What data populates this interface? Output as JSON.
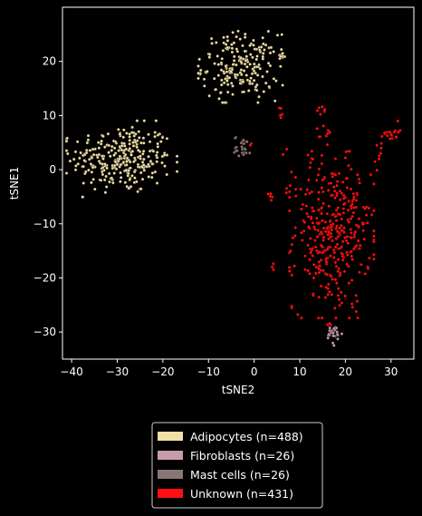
{
  "chart_data": {
    "type": "scatter",
    "xlabel": "tSNE2",
    "ylabel": "tSNE1",
    "xlim": [
      -42,
      35
    ],
    "ylim": [
      -35,
      30
    ],
    "xticks": [
      -40,
      -30,
      -20,
      -10,
      0,
      10,
      20,
      30
    ],
    "yticks": [
      -30,
      -20,
      -10,
      0,
      10,
      20
    ],
    "grid": false,
    "legend_position": "bottom-center",
    "background": "#000000",
    "series": [
      {
        "name": "Adipocytes (n=488)",
        "color": "#f1e0a6",
        "clusters": [
          {
            "cx": -29,
            "cy": 2,
            "sx": 5.5,
            "sy": 3.2,
            "n": 280
          },
          {
            "cx": -3,
            "cy": 19,
            "sx": 4.2,
            "sy": 3.0,
            "n": 200
          },
          {
            "cx": 6,
            "cy": 21,
            "sx": 0.4,
            "sy": 0.6,
            "n": 8
          }
        ]
      },
      {
        "name": "Fibroblasts (n=26)",
        "color": "#c79cab",
        "clusters": [
          {
            "cx": 17.5,
            "cy": -30.5,
            "sx": 0.9,
            "sy": 0.9,
            "n": 26
          }
        ]
      },
      {
        "name": "Mast cells (n=26)",
        "color": "#8a7575",
        "clusters": [
          {
            "cx": -2.5,
            "cy": 4.2,
            "sx": 0.9,
            "sy": 1.0,
            "n": 26
          }
        ]
      },
      {
        "name": "Unknown (n=431)",
        "color": "#ff1010",
        "clusters": [
          {
            "cx": 17,
            "cy": -12,
            "sx": 4.2,
            "sy": 7.0,
            "n": 345
          },
          {
            "cx": 30,
            "cy": 7,
            "sx": 0.9,
            "sy": 0.9,
            "n": 20
          },
          {
            "cx": 27.5,
            "cy": 3,
            "sx": 0.8,
            "sy": 1.4,
            "n": 8
          },
          {
            "cx": 15,
            "cy": 11,
            "sx": 0.6,
            "sy": 0.6,
            "n": 6
          },
          {
            "cx": 16,
            "cy": 6,
            "sx": 1.0,
            "sy": 1.2,
            "n": 10
          },
          {
            "cx": 5.5,
            "cy": 10.5,
            "sx": 0.5,
            "sy": 0.6,
            "n": 6
          },
          {
            "cx": 3.7,
            "cy": -4.8,
            "sx": 0.4,
            "sy": 0.5,
            "n": 5
          },
          {
            "cx": 24,
            "cy": -9.5,
            "sx": 0.8,
            "sy": 0.5,
            "n": 6
          },
          {
            "cx": -0.8,
            "cy": 5,
            "sx": 0.4,
            "sy": 0.4,
            "n": 3
          },
          {
            "cx": 16,
            "cy": -28.8,
            "sx": 0.6,
            "sy": 0.4,
            "n": 4
          },
          {
            "cx": 8,
            "cy": -3.5,
            "sx": 0.5,
            "sy": 0.5,
            "n": 4
          },
          {
            "cx": 7,
            "cy": 3,
            "sx": 0.5,
            "sy": 0.5,
            "n": 3
          },
          {
            "cx": 4,
            "cy": -18,
            "sx": 0.4,
            "sy": 0.5,
            "n": 3
          },
          {
            "cx": 12,
            "cy": 2,
            "sx": 0.4,
            "sy": 0.4,
            "n": 3
          },
          {
            "cx": 22,
            "cy": -5,
            "sx": 0.6,
            "sy": 0.6,
            "n": 5
          }
        ]
      }
    ]
  }
}
